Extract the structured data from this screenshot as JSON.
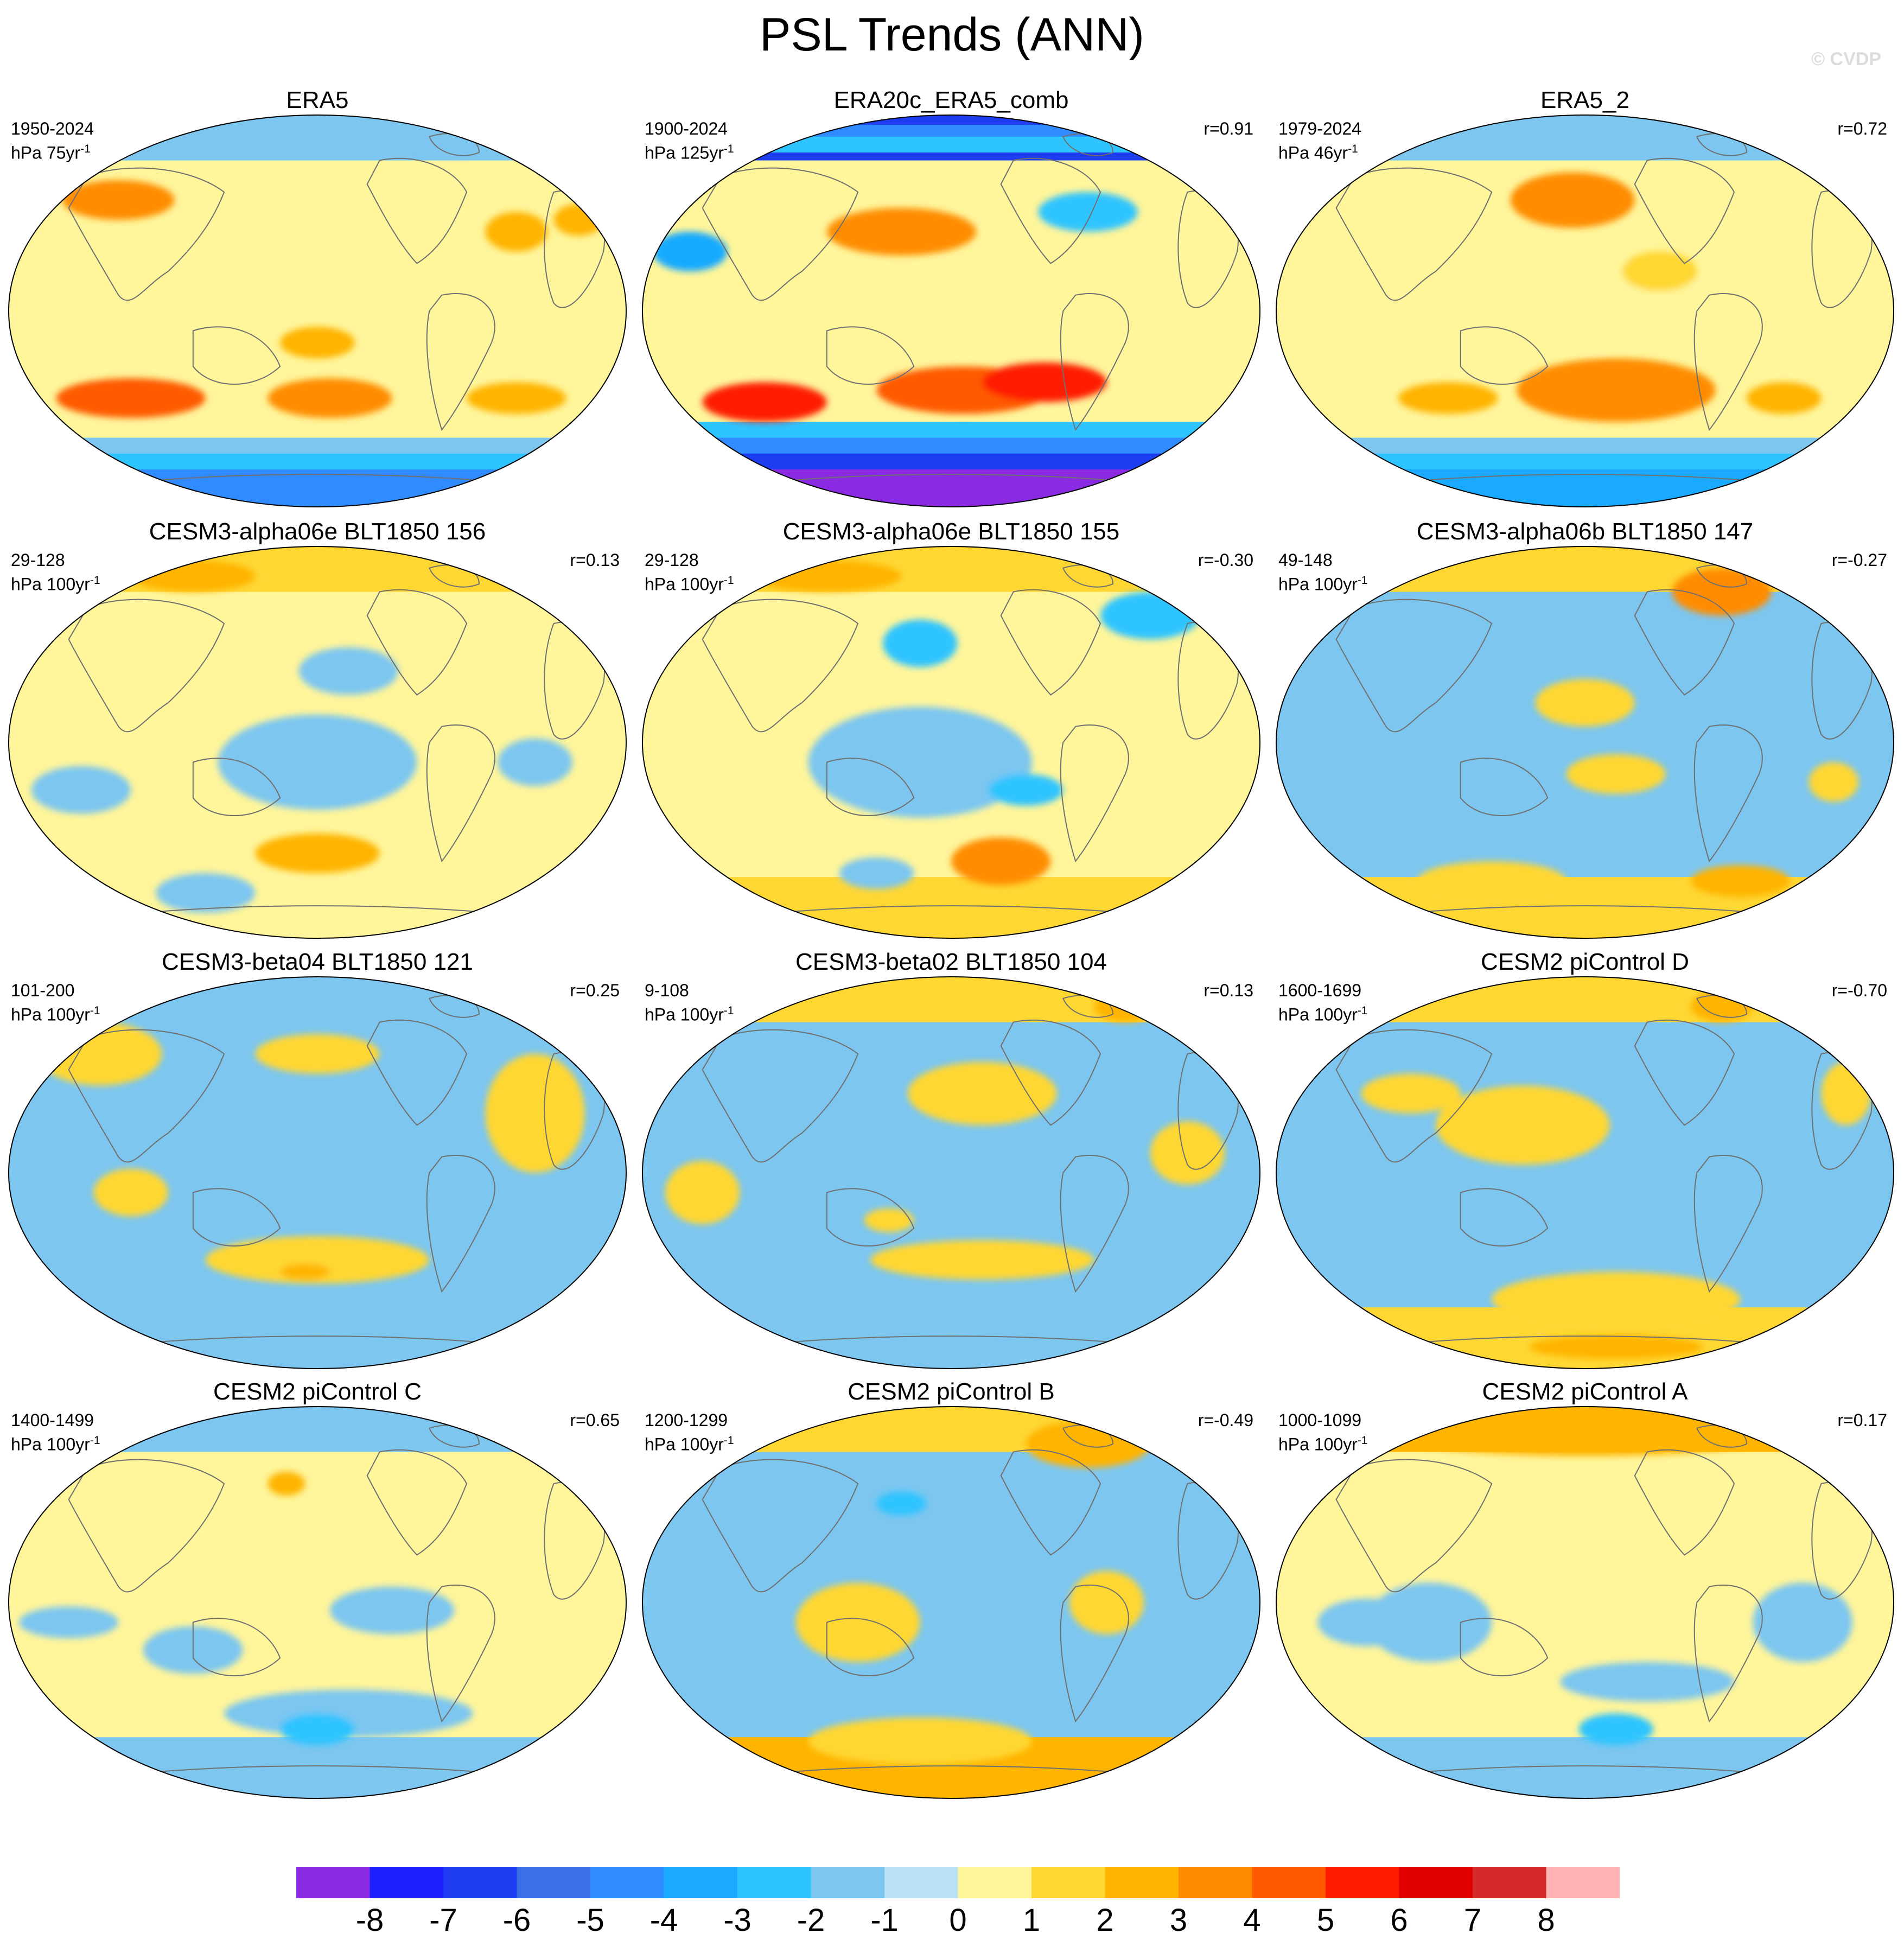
{
  "title": "PSL Trends (ANN)",
  "watermark": "© CVDP",
  "colors": {
    "bins": [
      "#8a2be2",
      "#2020ff",
      "#1e3cf0",
      "#3c6ee6",
      "#2f8bff",
      "#19aaff",
      "#2ec4ff",
      "#7cc6f0",
      "#b9e0f5",
      "#fff59a",
      "#ffd733",
      "#ffb400",
      "#ff8c00",
      "#ff5a00",
      "#ff1a00",
      "#e00000",
      "#d42a2a",
      "#ffb3b3"
    ],
    "coast": "#707070",
    "border": "#000000"
  },
  "colorbar": {
    "labels": [
      "-8",
      "-7",
      "-6",
      "-5",
      "-4",
      "-3",
      "-2",
      "-1",
      "0",
      "1",
      "2",
      "3",
      "4",
      "5",
      "6",
      "7",
      "8"
    ]
  },
  "panels": [
    {
      "title": "ERA5",
      "period": "1950-2024",
      "unit": "hPa 75yr",
      "r": "",
      "style": "obs1",
      "blobs": [
        [
          0.18,
          0.22,
          0.09,
          0.05,
          3
        ],
        [
          0.5,
          0.58,
          0.06,
          0.04,
          2
        ],
        [
          0.82,
          0.3,
          0.05,
          0.05,
          2
        ],
        [
          0.2,
          0.72,
          0.12,
          0.05,
          4
        ],
        [
          0.52,
          0.72,
          0.1,
          0.05,
          3
        ],
        [
          0.82,
          0.72,
          0.08,
          0.04,
          2
        ],
        [
          0.92,
          0.27,
          0.04,
          0.04,
          2
        ],
        [
          0.72,
          0.08,
          0.06,
          0.03,
          -1
        ]
      ],
      "north": -1,
      "south": -4
    },
    {
      "title": "ERA20c_ERA5_comb",
      "period": "1900-2024",
      "unit": "hPa 125yr",
      "r": "r=0.91",
      "style": "obs2",
      "blobs": [
        [
          0.42,
          0.3,
          0.12,
          0.06,
          3
        ],
        [
          0.2,
          0.73,
          0.1,
          0.05,
          5
        ],
        [
          0.52,
          0.7,
          0.14,
          0.06,
          4
        ],
        [
          0.65,
          0.68,
          0.1,
          0.05,
          5
        ],
        [
          0.08,
          0.35,
          0.06,
          0.05,
          -3
        ],
        [
          0.72,
          0.25,
          0.08,
          0.05,
          -2
        ]
      ],
      "north": -6,
      "south": -8
    },
    {
      "title": "ERA5_2",
      "period": "1979-2024",
      "unit": "hPa 46yr",
      "r": "r=0.72",
      "style": "obs3",
      "blobs": [
        [
          0.48,
          0.22,
          0.1,
          0.07,
          3
        ],
        [
          0.55,
          0.7,
          0.16,
          0.08,
          3
        ],
        [
          0.28,
          0.72,
          0.08,
          0.04,
          2
        ],
        [
          0.82,
          0.72,
          0.06,
          0.04,
          2
        ],
        [
          0.5,
          0.48,
          0.2,
          0.12,
          0
        ],
        [
          0.62,
          0.4,
          0.06,
          0.05,
          1
        ]
      ],
      "north": -1,
      "south": -3
    },
    {
      "title": "CESM3-alpha06e BLT1850 156",
      "period": "29-128",
      "unit": "hPa 100yr",
      "r": "r=0.13",
      "style": "model",
      "blobs": [
        [
          0.5,
          0.55,
          0.16,
          0.12,
          -1
        ],
        [
          0.12,
          0.62,
          0.08,
          0.06,
          -1
        ],
        [
          0.85,
          0.55,
          0.06,
          0.06,
          -1
        ],
        [
          0.3,
          0.08,
          0.1,
          0.04,
          2
        ],
        [
          0.5,
          0.78,
          0.1,
          0.05,
          2
        ],
        [
          0.32,
          0.88,
          0.08,
          0.05,
          -1
        ],
        [
          0.55,
          0.32,
          0.08,
          0.06,
          -1
        ]
      ],
      "north": 1,
      "south": 0
    },
    {
      "title": "CESM3-alpha06e BLT1850 155",
      "period": "29-128",
      "unit": "hPa 100yr",
      "r": "r=-0.30",
      "style": "model",
      "blobs": [
        [
          0.45,
          0.55,
          0.18,
          0.14,
          -1
        ],
        [
          0.3,
          0.08,
          0.12,
          0.04,
          2
        ],
        [
          0.58,
          0.8,
          0.08,
          0.06,
          3
        ],
        [
          0.82,
          0.18,
          0.08,
          0.06,
          -2
        ],
        [
          0.45,
          0.25,
          0.06,
          0.06,
          -2
        ],
        [
          0.62,
          0.62,
          0.06,
          0.04,
          -2
        ],
        [
          0.38,
          0.83,
          0.06,
          0.04,
          -1
        ]
      ],
      "north": 1,
      "south": 1
    },
    {
      "title": "CESM3-alpha06b BLT1850 147",
      "period": "49-148",
      "unit": "hPa 100yr",
      "r": "r=-0.27",
      "style": "modelb",
      "blobs": [
        [
          0.72,
          0.12,
          0.08,
          0.06,
          3
        ],
        [
          0.5,
          0.4,
          0.08,
          0.06,
          1
        ],
        [
          0.55,
          0.58,
          0.08,
          0.05,
          1
        ],
        [
          0.35,
          0.85,
          0.12,
          0.05,
          1
        ],
        [
          0.75,
          0.85,
          0.08,
          0.04,
          2
        ],
        [
          0.9,
          0.6,
          0.04,
          0.05,
          1
        ]
      ],
      "north": 1,
      "south": 1
    },
    {
      "title": "CESM3-beta04 BLT1850 121",
      "period": "101-200",
      "unit": "hPa 100yr",
      "r": "r=0.25",
      "style": "modelb",
      "blobs": [
        [
          0.15,
          0.2,
          0.1,
          0.08,
          1
        ],
        [
          0.5,
          0.2,
          0.1,
          0.05,
          1
        ],
        [
          0.5,
          0.72,
          0.18,
          0.06,
          1
        ],
        [
          0.48,
          0.75,
          0.04,
          0.02,
          2
        ],
        [
          0.85,
          0.35,
          0.08,
          0.15,
          1
        ],
        [
          0.2,
          0.55,
          0.06,
          0.06,
          1
        ]
      ],
      "north": -1,
      "south": -1
    },
    {
      "title": "CESM3-beta02 BLT1850 104",
      "period": "9-108",
      "unit": "hPa 100yr",
      "r": "r=0.13",
      "style": "modelb",
      "blobs": [
        [
          0.55,
          0.3,
          0.12,
          0.08,
          1
        ],
        [
          0.55,
          0.72,
          0.18,
          0.05,
          1
        ],
        [
          0.1,
          0.55,
          0.06,
          0.08,
          1
        ],
        [
          0.88,
          0.45,
          0.06,
          0.08,
          1
        ],
        [
          0.78,
          0.08,
          0.05,
          0.04,
          2
        ],
        [
          0.4,
          0.62,
          0.04,
          0.03,
          1
        ]
      ],
      "north": 1,
      "south": -1
    },
    {
      "title": "CESM2 piControl D",
      "period": "1600-1699",
      "unit": "hPa 100yr",
      "r": "r=-0.70",
      "style": "modelb",
      "blobs": [
        [
          0.4,
          0.38,
          0.14,
          0.1,
          1
        ],
        [
          0.22,
          0.3,
          0.08,
          0.05,
          1
        ],
        [
          0.55,
          0.82,
          0.2,
          0.07,
          1
        ],
        [
          0.55,
          0.94,
          0.14,
          0.03,
          2
        ],
        [
          0.92,
          0.3,
          0.04,
          0.08,
          1
        ],
        [
          0.72,
          0.08,
          0.05,
          0.04,
          2
        ]
      ],
      "north": 1,
      "south": 1
    },
    {
      "title": "CESM2 piControl C",
      "period": "1400-1499",
      "unit": "hPa 100yr",
      "r": "r=0.65",
      "style": "model",
      "blobs": [
        [
          0.3,
          0.62,
          0.08,
          0.06,
          -1
        ],
        [
          0.62,
          0.52,
          0.1,
          0.06,
          -1
        ],
        [
          0.55,
          0.78,
          0.2,
          0.06,
          -1
        ],
        [
          0.5,
          0.82,
          0.06,
          0.04,
          -2
        ],
        [
          0.1,
          0.55,
          0.08,
          0.04,
          -1
        ],
        [
          0.45,
          0.2,
          0.03,
          0.03,
          2
        ]
      ],
      "north": -1,
      "south": -1
    },
    {
      "title": "CESM2 piControl B",
      "period": "1200-1299",
      "unit": "hPa 100yr",
      "r": "r=-0.49",
      "style": "modelb",
      "blobs": [
        [
          0.72,
          0.1,
          0.1,
          0.06,
          2
        ],
        [
          0.35,
          0.55,
          0.1,
          0.1,
          1
        ],
        [
          0.75,
          0.5,
          0.06,
          0.08,
          1
        ],
        [
          0.45,
          0.85,
          0.18,
          0.06,
          1
        ],
        [
          0.4,
          0.96,
          0.1,
          0.03,
          2
        ],
        [
          0.42,
          0.25,
          0.04,
          0.03,
          -2
        ]
      ],
      "north": 1,
      "south": 2
    },
    {
      "title": "CESM2 piControl A",
      "period": "1000-1099",
      "unit": "hPa 100yr",
      "r": "r=0.17",
      "style": "model",
      "blobs": [
        [
          0.5,
          0.08,
          0.3,
          0.05,
          2
        ],
        [
          0.25,
          0.55,
          0.1,
          0.1,
          -1
        ],
        [
          0.15,
          0.55,
          0.08,
          0.06,
          -1
        ],
        [
          0.55,
          0.82,
          0.06,
          0.04,
          -2
        ],
        [
          0.85,
          0.55,
          0.08,
          0.1,
          -1
        ],
        [
          0.6,
          0.7,
          0.14,
          0.05,
          -1
        ]
      ],
      "north": 2,
      "south": -1
    }
  ]
}
